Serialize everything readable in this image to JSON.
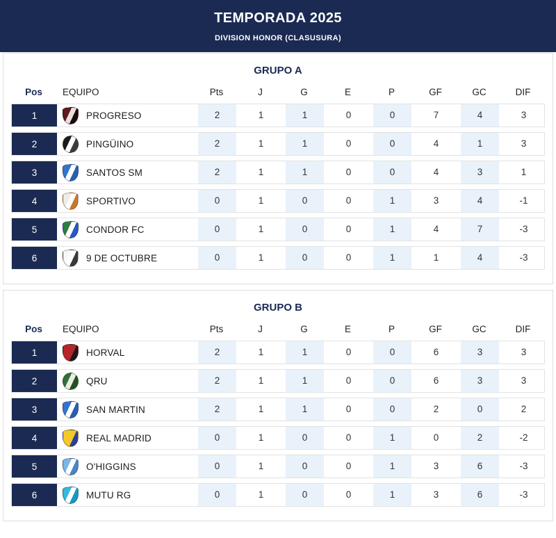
{
  "header": {
    "title": "TEMPORADA 2025",
    "subtitle": "DIVISION HONOR (CLASUSURA)"
  },
  "colors": {
    "navy": "#1b2a52",
    "stat_shade": "#e9f2fa",
    "panel_border": "#dddddd",
    "row_border": "#e2e2e2"
  },
  "columns": {
    "pos": "Pos",
    "equipo": "EQUIPO",
    "stats": [
      "Pts",
      "J",
      "G",
      "E",
      "P",
      "GF",
      "GC",
      "DIF"
    ]
  },
  "groups": [
    {
      "title": "GRUPO A",
      "rows": [
        {
          "pos": "1",
          "team": "PROGRESO",
          "logo": {
            "name": "progreso-crest",
            "shape": "shield",
            "colors": [
              "#5d1a20",
              "#1c0a0c",
              "#e8dfdb"
            ]
          },
          "stats": [
            "2",
            "1",
            "1",
            "0",
            "0",
            "7",
            "4",
            "3"
          ]
        },
        {
          "pos": "2",
          "team": "PINGÜINO",
          "logo": {
            "name": "pinguino-crest",
            "shape": "circle",
            "colors": [
              "#1d1d1d",
              "#3c3c3c",
              "#ffffff"
            ]
          },
          "stats": [
            "2",
            "1",
            "1",
            "0",
            "0",
            "4",
            "1",
            "3"
          ]
        },
        {
          "pos": "3",
          "team": "SANTOS SM",
          "logo": {
            "name": "santos-sm-crest",
            "shape": "shield",
            "colors": [
              "#3374cc",
              "#2a5eb0",
              "#ffffff"
            ]
          },
          "stats": [
            "2",
            "1",
            "1",
            "0",
            "0",
            "4",
            "3",
            "1"
          ]
        },
        {
          "pos": "4",
          "team": "SPORTIVO",
          "logo": {
            "name": "sportivo-crest",
            "shape": "shield",
            "colors": [
              "#efece6",
              "#c9762a",
              "#ffffff"
            ]
          },
          "stats": [
            "0",
            "1",
            "0",
            "0",
            "1",
            "3",
            "4",
            "-1"
          ]
        },
        {
          "pos": "5",
          "team": "CONDOR FC",
          "logo": {
            "name": "condor-fc-crest",
            "shape": "shield",
            "colors": [
              "#2e7d46",
              "#2b55c8",
              "#ffffff"
            ]
          },
          "stats": [
            "0",
            "1",
            "0",
            "0",
            "1",
            "4",
            "7",
            "-3"
          ]
        },
        {
          "pos": "6",
          "team": "9 DE OCTUBRE",
          "logo": {
            "name": "9-de-octubre-crest",
            "shape": "shield",
            "colors": [
              "#f7f7f7",
              "#3a3a3a",
              "#ffffff"
            ]
          },
          "stats": [
            "0",
            "1",
            "0",
            "0",
            "1",
            "1",
            "4",
            "-3"
          ]
        }
      ]
    },
    {
      "title": "GRUPO B",
      "rows": [
        {
          "pos": "1",
          "team": "HORVAL",
          "logo": {
            "name": "horval-crest",
            "shape": "shield",
            "colors": [
              "#b5252b",
              "#1a1a1a",
              "#b5252b"
            ]
          },
          "stats": [
            "2",
            "1",
            "1",
            "0",
            "0",
            "6",
            "3",
            "3"
          ]
        },
        {
          "pos": "2",
          "team": "QRU",
          "logo": {
            "name": "qru-crest",
            "shape": "circle",
            "colors": [
              "#356e3a",
              "#24511f",
              "#e9efe0"
            ]
          },
          "stats": [
            "2",
            "1",
            "1",
            "0",
            "0",
            "6",
            "3",
            "3"
          ]
        },
        {
          "pos": "3",
          "team": "SAN MARTIN",
          "logo": {
            "name": "san-martin-crest",
            "shape": "shield",
            "colors": [
              "#3374cc",
              "#2a5eb0",
              "#ffffff"
            ]
          },
          "stats": [
            "2",
            "1",
            "1",
            "0",
            "0",
            "2",
            "0",
            "2"
          ]
        },
        {
          "pos": "4",
          "team": "REAL MADRID",
          "logo": {
            "name": "real-madrid-crest",
            "shape": "shield",
            "colors": [
              "#f2c928",
              "#2b3f9e",
              "#f2c928"
            ]
          },
          "stats": [
            "0",
            "1",
            "0",
            "0",
            "1",
            "0",
            "2",
            "-2"
          ]
        },
        {
          "pos": "5",
          "team": "O'HIGGINS",
          "logo": {
            "name": "ohiggins-crest",
            "shape": "shield",
            "colors": [
              "#79b7e6",
              "#4a86c8",
              "#ffffff"
            ]
          },
          "stats": [
            "0",
            "1",
            "0",
            "0",
            "1",
            "3",
            "6",
            "-3"
          ]
        },
        {
          "pos": "6",
          "team": "MUTU RG",
          "logo": {
            "name": "mutu-rg-crest",
            "shape": "shield",
            "colors": [
              "#35b8dc",
              "#1899c2",
              "#ffffff"
            ]
          },
          "stats": [
            "0",
            "1",
            "0",
            "0",
            "1",
            "3",
            "6",
            "-3"
          ]
        }
      ]
    }
  ]
}
